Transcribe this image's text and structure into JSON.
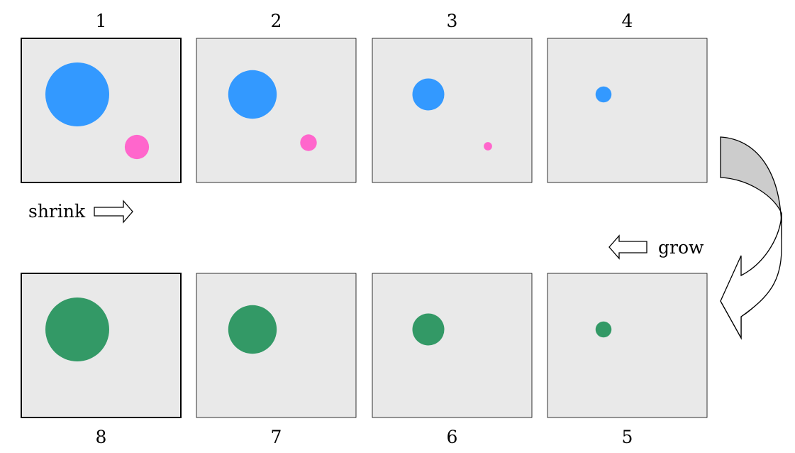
{
  "panels": [
    {
      "number": "1",
      "row": "top",
      "emphasized": true,
      "circles": [
        {
          "color": "#3399ff",
          "size": 1.0
        },
        {
          "color": "#ff66cc",
          "size": 0.38
        }
      ]
    },
    {
      "number": "2",
      "row": "top",
      "emphasized": false,
      "circles": [
        {
          "color": "#3399ff",
          "size": 0.76
        },
        {
          "color": "#ff66cc",
          "size": 0.26
        }
      ]
    },
    {
      "number": "3",
      "row": "top",
      "emphasized": false,
      "circles": [
        {
          "color": "#3399ff",
          "size": 0.5
        },
        {
          "color": "#ff66cc",
          "size": 0.13
        }
      ]
    },
    {
      "number": "4",
      "row": "top",
      "emphasized": false,
      "circles": [
        {
          "color": "#3399ff",
          "size": 0.25
        }
      ]
    },
    {
      "number": "5",
      "row": "bottom",
      "emphasized": false,
      "circles": [
        {
          "color": "#339966",
          "size": 0.25
        }
      ]
    },
    {
      "number": "6",
      "row": "bottom",
      "emphasized": false,
      "circles": [
        {
          "color": "#339966",
          "size": 0.5
        }
      ]
    },
    {
      "number": "7",
      "row": "bottom",
      "emphasized": false,
      "circles": [
        {
          "color": "#339966",
          "size": 0.76
        }
      ]
    },
    {
      "number": "8",
      "row": "bottom",
      "emphasized": true,
      "circles": [
        {
          "color": "#339966",
          "size": 1.0
        }
      ]
    }
  ],
  "shrink_label": "shrink",
  "grow_label": "grow",
  "colors": {
    "panel_fill": "#e9e9e9",
    "blue": "#3399ff",
    "pink": "#ff66cc",
    "green": "#339966",
    "turn_arrow_fill": "#cccccc"
  }
}
